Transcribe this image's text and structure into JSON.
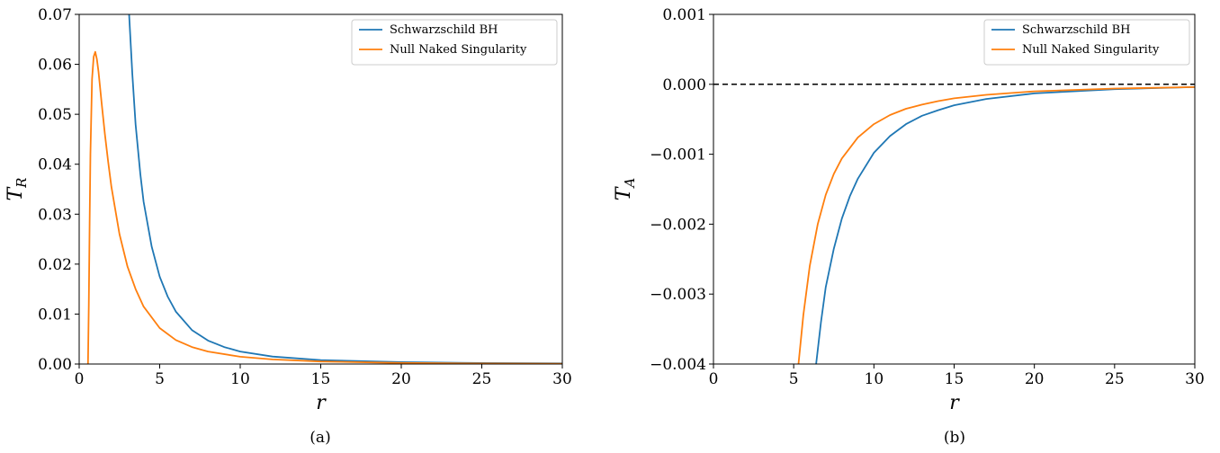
{
  "chart_data": [
    {
      "type": "line",
      "caption": "(a)",
      "xlabel": "r",
      "ylabel": "T",
      "ylabel_sub": "R",
      "xlim": [
        0,
        30
      ],
      "ylim": [
        0,
        0.07
      ],
      "xticks": [
        0,
        5,
        10,
        15,
        20,
        25,
        30
      ],
      "yticks": [
        0.0,
        0.01,
        0.02,
        0.03,
        0.04,
        0.05,
        0.06,
        0.07
      ],
      "ytick_labels": [
        "0.00",
        "0.01",
        "0.02",
        "0.03",
        "0.04",
        "0.05",
        "0.06",
        "0.07"
      ],
      "legend_position": "top-right",
      "series": [
        {
          "name": "Schwarzschild BH",
          "color": "#1f77b4",
          "x": [
            3.1,
            3.3,
            3.5,
            3.8,
            4.0,
            4.5,
            5.0,
            5.5,
            6.0,
            7.0,
            8.0,
            9.0,
            10.0,
            12.0,
            15.0,
            20.0,
            25.0,
            30.0
          ],
          "y": [
            0.07,
            0.058,
            0.048,
            0.038,
            0.0325,
            0.0235,
            0.0175,
            0.0135,
            0.0105,
            0.0068,
            0.0047,
            0.0034,
            0.0025,
            0.0015,
            0.0008,
            0.00038,
            0.0002,
            0.00012
          ]
        },
        {
          "name": "Null Naked Singularity",
          "color": "#ff7f0e",
          "x": [
            0.55,
            0.6,
            0.65,
            0.7,
            0.8,
            0.9,
            1.0,
            1.1,
            1.2,
            1.4,
            1.6,
            1.8,
            2.0,
            2.5,
            3.0,
            3.5,
            4.0,
            5.0,
            6.0,
            7.0,
            8.0,
            10.0,
            12.0,
            15.0,
            20.0,
            25.0,
            30.0
          ],
          "y": [
            0.0,
            0.012,
            0.028,
            0.042,
            0.057,
            0.0615,
            0.0625,
            0.061,
            0.0585,
            0.052,
            0.046,
            0.0405,
            0.0355,
            0.026,
            0.0195,
            0.015,
            0.0115,
            0.0072,
            0.0048,
            0.0034,
            0.0025,
            0.00145,
            0.00092,
            0.0005,
            0.00022,
            0.00011,
            6e-05
          ]
        }
      ]
    },
    {
      "type": "line",
      "caption": "(b)",
      "xlabel": "r",
      "ylabel": "T",
      "ylabel_sub": "A",
      "xlim": [
        0,
        30
      ],
      "ylim": [
        -0.004,
        0.001
      ],
      "xticks": [
        0,
        5,
        10,
        15,
        20,
        25,
        30
      ],
      "yticks": [
        -0.004,
        -0.003,
        -0.002,
        -0.001,
        0.0,
        0.001
      ],
      "ytick_labels": [
        "−0.004",
        "−0.003",
        "−0.002",
        "−0.001",
        "0.000",
        "0.001"
      ],
      "reference_line": {
        "y": 0.0,
        "style": "dashed",
        "color": "#000000"
      },
      "legend_position": "top-right",
      "series": [
        {
          "name": "Schwarzschild BH",
          "color": "#1f77b4",
          "x": [
            6.4,
            6.7,
            7.0,
            7.5,
            8.0,
            8.5,
            9.0,
            10.0,
            11.0,
            12.0,
            13.0,
            14.0,
            15.0,
            17.0,
            20.0,
            25.0,
            30.0
          ],
          "y": [
            -0.004,
            -0.0034,
            -0.0029,
            -0.00235,
            -0.00192,
            -0.0016,
            -0.00135,
            -0.00098,
            -0.00074,
            -0.00057,
            -0.00045,
            -0.00037,
            -0.0003,
            -0.00021,
            -0.00013,
            -7e-05,
            -4e-05
          ]
        },
        {
          "name": "Null Naked Singularity",
          "color": "#ff7f0e",
          "x": [
            5.3,
            5.6,
            6.0,
            6.5,
            7.0,
            7.5,
            8.0,
            9.0,
            10.0,
            11.0,
            12.0,
            13.0,
            14.0,
            15.0,
            17.0,
            20.0,
            25.0,
            30.0
          ],
          "y": [
            -0.004,
            -0.0033,
            -0.0026,
            -0.002,
            -0.00158,
            -0.00128,
            -0.00106,
            -0.00076,
            -0.00057,
            -0.00044,
            -0.00035,
            -0.00029,
            -0.00024,
            -0.0002,
            -0.00015,
            -0.0001,
            -6e-05,
            -4e-05
          ]
        }
      ]
    }
  ]
}
